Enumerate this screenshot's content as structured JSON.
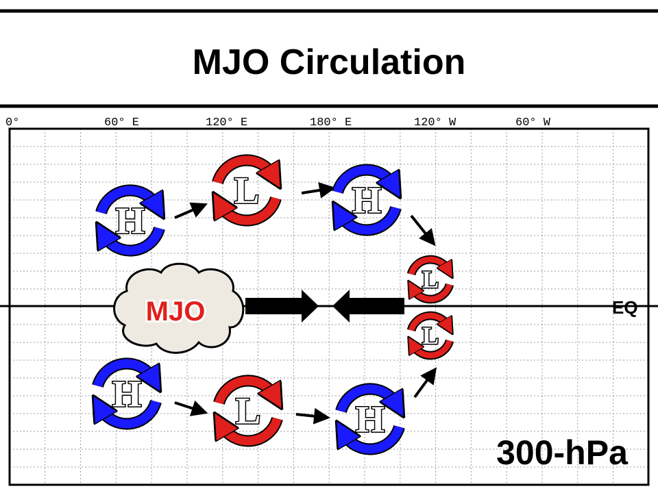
{
  "header": {
    "title": "MJO Circulation"
  },
  "longitude_labels": [
    "0°",
    "60° E",
    "120° E",
    "180° E",
    "120° W",
    "60° W"
  ],
  "systems": [
    {
      "label": "H",
      "color": "#1a1aff"
    },
    {
      "label": "L",
      "color": "#e0201c"
    },
    {
      "label": "H",
      "color": "#1a1aff"
    },
    {
      "label": "L",
      "color": "#e0201c"
    },
    {
      "label": "L",
      "color": "#e0201c"
    },
    {
      "label": "H",
      "color": "#1a1aff"
    },
    {
      "label": "L",
      "color": "#e0201c"
    },
    {
      "label": "H",
      "color": "#1a1aff"
    }
  ],
  "cloud_label": "MJO",
  "equator_label": "EQ",
  "level_label": "300-hPa"
}
